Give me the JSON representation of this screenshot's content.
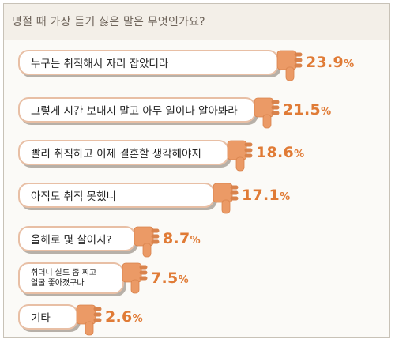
{
  "title": "명절 때 가장 듣기 싫은 말은 무엇인가요?",
  "colors": {
    "accent": "#e07b36",
    "thumb": "#eb9a66",
    "thumb_edge": "#d9834c",
    "bubble_border": "#e8bfa5"
  },
  "chart_data": {
    "type": "bar",
    "title": "명절 때 가장 듣기 싫은 말은 무엇인가요?",
    "unit": "%",
    "categories": [
      "누구는 취직해서 자리 잡았더라",
      "그렇게 시간 보내지 말고 아무 일이나 알아봐라",
      "빨리 취직하고 이제 결혼할 생각해야지",
      "아직도 취직 못했니",
      "올해로 몇 살이지?",
      "취더니 살도 좀 찌고\n얼굴 좋아졌구나",
      "기타"
    ],
    "values": [
      23.9,
      21.5,
      18.6,
      17.1,
      8.7,
      7.5,
      2.6
    ],
    "value_labels": [
      "23.9",
      "21.5",
      "18.6",
      "17.1",
      "8.7",
      "7.5",
      "2.6"
    ],
    "percent_sign": "%"
  }
}
